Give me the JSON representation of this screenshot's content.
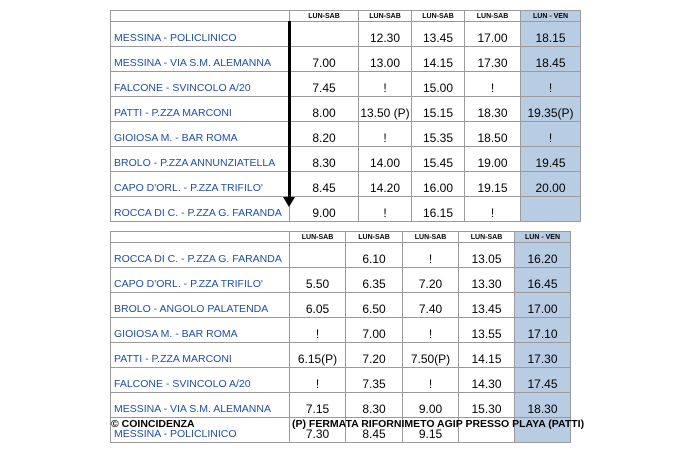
{
  "table1": {
    "headers": [
      "",
      "LUN-SAB",
      "LUN-SAB",
      "LUN-SAB",
      "LUN-SAB",
      "LUN - VEN"
    ],
    "rows": [
      [
        "MESSINA - POLICLINICO",
        "",
        "12.30",
        "13.45",
        "17.00",
        "18.15"
      ],
      [
        "MESSINA - VIA S.M. ALEMANNA",
        "7.00",
        "13.00",
        "14.15",
        "17.30",
        "18.45"
      ],
      [
        "FALCONE - SVINCOLO A/20",
        "7.45",
        "!",
        "15.00",
        "!",
        "!"
      ],
      [
        "PATTI - P.ZZA MARCONI",
        "8.00",
        "13.50 (P)",
        "15.15",
        "18.30",
        "19.35(P)"
      ],
      [
        "GIOIOSA M. - BAR ROMA",
        "8.20",
        "!",
        "15.35",
        "18.50",
        "!"
      ],
      [
        "BROLO - P.ZZA ANNUNZIATELLA",
        "8.30",
        "14.00",
        "15.45",
        "19.00",
        "19.45"
      ],
      [
        "CAPO D'ORL. - P.ZZA TRIFILO'",
        "8.45",
        "14.20",
        "16.00",
        "19.15",
        "20.00"
      ],
      [
        "ROCCA DI C. - P.ZZA G. FARANDA",
        "9.00",
        "!",
        "16.15",
        "!",
        ""
      ]
    ]
  },
  "table2": {
    "headers": [
      "",
      "LUN-SAB",
      "LUN-SAB",
      "LUN-SAB",
      "LUN-SAB",
      "LUN - VEN"
    ],
    "rows": [
      [
        "ROCCA DI C. - P.ZZA G. FARANDA",
        "",
        "6.10",
        "!",
        "13.05",
        "16.20"
      ],
      [
        "CAPO D'ORL. - P.ZZA TRIFILO'",
        "5.50",
        "6.35",
        "7.20",
        "13.30",
        "16.45"
      ],
      [
        "BROLO - ANGOLO PALATENDA",
        "6.05",
        "6.50",
        "7.40",
        "13.45",
        "17.00"
      ],
      [
        "GIOIOSA M. - BAR ROMA",
        "!",
        "7.00",
        "!",
        "13.55",
        "17.10"
      ],
      [
        "PATTI - P.ZZA MARCONI",
        "6.15(P)",
        "7.20",
        "7.50(P)",
        "14.15",
        "17.30"
      ],
      [
        "FALCONE - SVINCOLO A/20",
        "!",
        "7.35",
        "!",
        "14.30",
        "17.45"
      ],
      [
        "MESSINA - VIA S.M. ALEMANNA",
        "7.15",
        "8.30",
        "9.00",
        "15.30",
        "18.30"
      ],
      [
        "MESSINA - POLICLINICO",
        "7.30",
        "8.45",
        "9.15",
        "",
        ""
      ]
    ]
  },
  "footer": {
    "left": "© COINCIDENZA",
    "right": "(P) FERMATA RIFORNIMETO AGIP PRESSO PLAYA (PATTI)"
  },
  "colors": {
    "highlight_column": "#b8cce4",
    "stop_text": "#1f4ea8"
  },
  "icons": {
    "direction_arrow": "down-arrow-icon"
  }
}
